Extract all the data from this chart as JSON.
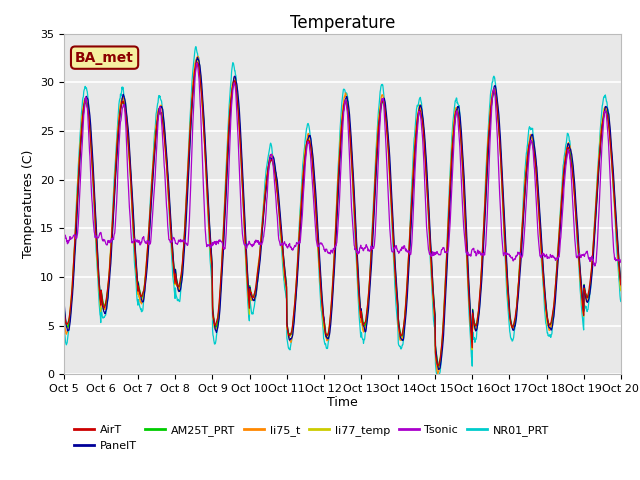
{
  "title": "Temperature",
  "ylabel": "Temperatures (C)",
  "xlabel": "Time",
  "ylim": [
    0,
    35
  ],
  "yticks": [
    0,
    5,
    10,
    15,
    20,
    25,
    30,
    35
  ],
  "xtick_labels": [
    "Oct 5",
    "Oct 6",
    "Oct 7",
    "Oct 8",
    "Oct 9",
    "Oct 10",
    "Oct 11",
    "Oct 12",
    "Oct 13",
    "Oct 14",
    "Oct 15",
    "Oct 16",
    "Oct 17",
    "Oct 18",
    "Oct 19",
    "Oct 20"
  ],
  "annotation_text": "BA_met",
  "annotation_color": "#8B0000",
  "annotation_bg": "#F5F0A0",
  "annotation_border": "#8B0000",
  "series_colors": {
    "AirT": "#CC0000",
    "PanelT": "#000099",
    "AM25T_PRT": "#00CC00",
    "li75_t": "#FF8800",
    "li77_temp": "#CCCC00",
    "Tsonic": "#AA00CC",
    "NR01_PRT": "#00CCCC"
  },
  "fig_bg": "#FFFFFF",
  "plot_bg": "#E8E8E8",
  "grid_color": "#FFFFFF",
  "title_fontsize": 12,
  "label_fontsize": 9,
  "tick_fontsize": 8,
  "linewidth": 0.9,
  "legend_fontsize": 8
}
